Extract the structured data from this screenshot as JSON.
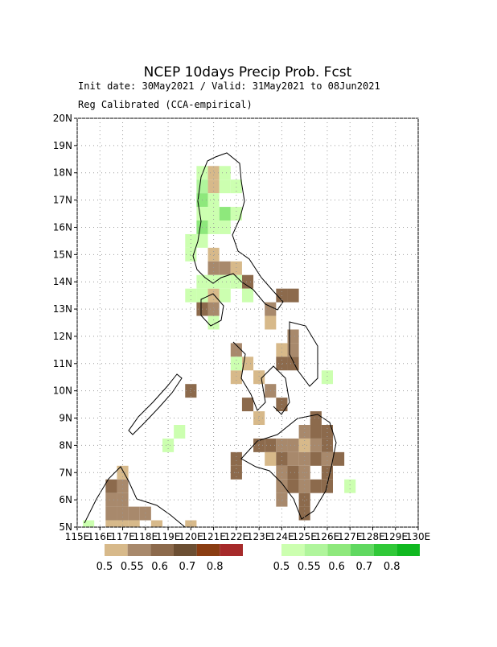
{
  "chart_data": {
    "type": "gridmap",
    "title": "NCEP 10days Precip Prob. Fcst",
    "subtitle": "Init date: 30May2021 / Valid: 31May2021 to 08Jun2021",
    "subtitle2": "Reg Calibrated (CCA-empirical)",
    "xlim": [
      115,
      130
    ],
    "ylim": [
      5,
      20
    ],
    "grid": true,
    "xticks": [
      {
        "value": 115,
        "label": "115E"
      },
      {
        "value": 116,
        "label": "116E"
      },
      {
        "value": 117,
        "label": "117E"
      },
      {
        "value": 118,
        "label": "118E"
      },
      {
        "value": 119,
        "label": "119E"
      },
      {
        "value": 120,
        "label": "120E"
      },
      {
        "value": 121,
        "label": "121E"
      },
      {
        "value": 122,
        "label": "122E"
      },
      {
        "value": 123,
        "label": "123E"
      },
      {
        "value": 124,
        "label": "124E"
      },
      {
        "value": 125,
        "label": "125E"
      },
      {
        "value": 126,
        "label": "126E"
      },
      {
        "value": 127,
        "label": "127E"
      },
      {
        "value": 128,
        "label": "128E"
      },
      {
        "value": 129,
        "label": "129E"
      },
      {
        "value": 130,
        "label": "130E"
      }
    ],
    "yticks": [
      {
        "value": 5,
        "label": "5N"
      },
      {
        "value": 6,
        "label": "6N"
      },
      {
        "value": 7,
        "label": "7N"
      },
      {
        "value": 8,
        "label": "8N"
      },
      {
        "value": 9,
        "label": "9N"
      },
      {
        "value": 10,
        "label": "10N"
      },
      {
        "value": 11,
        "label": "11N"
      },
      {
        "value": 12,
        "label": "12N"
      },
      {
        "value": 13,
        "label": "13N"
      },
      {
        "value": 14,
        "label": "14N"
      },
      {
        "value": 15,
        "label": "15N"
      },
      {
        "value": 16,
        "label": "16N"
      },
      {
        "value": 17,
        "label": "17N"
      },
      {
        "value": 18,
        "label": "18N"
      },
      {
        "value": 19,
        "label": "19N"
      },
      {
        "value": 20,
        "label": "20N"
      }
    ],
    "colorbars": [
      {
        "colors": [
          "#d7b98a",
          "#a8896c",
          "#8c6a4c",
          "#6c4f33",
          "#8a3d12",
          "#a62a2a"
        ],
        "labels": [
          0.5,
          0.55,
          0.6,
          0.7,
          0.8
        ]
      },
      {
        "colors": [
          "#ccffb0",
          "#b0f59c",
          "#8ee87c",
          "#60d860",
          "#30c838",
          "#10b820"
        ],
        "labels": [
          0.5,
          0.55,
          0.6,
          0.7,
          0.8
        ]
      }
    ],
    "series": [
      {
        "x": [
          121.0,
          121.0,
          121.0,
          121.0,
          121.5,
          122.0,
          122.5,
          121.0,
          120.5,
          121.0,
          124.0,
          124.5,
          123.5,
          123.5,
          124.5,
          124.0,
          124.5,
          122.0,
          122.5,
          124.0,
          124.5,
          122.0,
          123.0,
          123.5,
          120.0,
          122.5,
          124.0,
          123.0,
          125.5,
          125.0,
          125.5,
          126.0,
          123.0,
          123.5,
          124.0,
          124.5,
          125.0,
          125.5,
          126.0,
          122.0,
          123.5,
          124.0,
          124.5,
          125.0,
          125.5,
          126.0,
          126.5,
          122.0,
          124.0,
          124.5,
          125.0,
          126.0,
          124.0,
          124.5,
          125.0,
          125.5,
          126.0,
          124.0,
          125.0,
          125.0,
          117.0,
          117.0,
          116.5,
          116.5,
          117.0,
          116.5,
          117.0,
          117.5,
          118.0,
          116.5,
          117.0,
          117.5,
          118.5,
          120.0
        ],
        "y": [
          18.0,
          17.5,
          15.0,
          14.5,
          14.5,
          14.5,
          14.0,
          13.5,
          13.0,
          13.0,
          13.5,
          13.5,
          13.0,
          12.5,
          12.0,
          11.5,
          11.5,
          11.5,
          11.0,
          11.0,
          11.0,
          10.5,
          10.5,
          10.0,
          10.0,
          9.5,
          9.5,
          9.0,
          9.0,
          8.5,
          8.5,
          8.5,
          8.0,
          8.0,
          8.0,
          8.0,
          8.0,
          8.0,
          8.0,
          7.5,
          7.5,
          7.5,
          7.5,
          7.5,
          7.5,
          7.5,
          7.5,
          7.0,
          7.0,
          7.0,
          7.0,
          7.0,
          6.5,
          6.5,
          6.5,
          6.5,
          6.5,
          6.0,
          6.0,
          5.5,
          7.0,
          6.5,
          6.5,
          6.0,
          6.0,
          5.5,
          5.5,
          5.5,
          5.5,
          5.0,
          5.0,
          5.0,
          5.0,
          5.0
        ],
        "values": [
          0.5,
          0.5,
          0.5,
          0.55,
          0.55,
          0.5,
          0.6,
          0.5,
          0.6,
          0.55,
          0.6,
          0.6,
          0.55,
          0.5,
          0.55,
          0.5,
          0.55,
          0.55,
          0.5,
          0.6,
          0.6,
          0.5,
          0.5,
          0.55,
          0.6,
          0.6,
          0.6,
          0.5,
          0.6,
          0.55,
          0.6,
          0.6,
          0.6,
          0.6,
          0.55,
          0.55,
          0.5,
          0.55,
          0.6,
          0.6,
          0.5,
          0.6,
          0.55,
          0.55,
          0.6,
          0.55,
          0.6,
          0.6,
          0.55,
          0.6,
          0.55,
          0.6,
          0.55,
          0.6,
          0.55,
          0.6,
          0.6,
          0.55,
          0.6,
          0.6,
          0.5,
          0.55,
          0.6,
          0.55,
          0.55,
          0.55,
          0.55,
          0.55,
          0.55,
          0.5,
          0.5,
          0.5,
          0.5,
          0.5
        ]
      },
      {
        "x": [
          120.5,
          121.5,
          120.5,
          121.5,
          122.0,
          120.5,
          121.0,
          121.5,
          122.0,
          120.5,
          121.0,
          121.5,
          120.5,
          121.0,
          120.0,
          120.5,
          120.0,
          121.5,
          121.0,
          122.0,
          120.5,
          120.0,
          120.5,
          121.5,
          122.5,
          121.0,
          119.5,
          119.0,
          122.0,
          126.0,
          115.5,
          127.0
        ],
        "y": [
          18.0,
          18.0,
          17.5,
          17.5,
          17.5,
          17.0,
          17.0,
          16.5,
          16.5,
          16.5,
          16.5,
          16.0,
          16.0,
          16.0,
          15.5,
          15.5,
          15.0,
          14.0,
          14.0,
          14.0,
          14.0,
          13.5,
          13.5,
          13.5,
          13.5,
          12.5,
          8.5,
          8.0,
          11.0,
          10.5,
          5.0,
          6.5
        ],
        "values": [
          0.5,
          0.5,
          0.55,
          0.5,
          0.5,
          0.6,
          0.5,
          0.6,
          0.5,
          0.5,
          0.5,
          0.5,
          0.6,
          0.5,
          0.5,
          0.5,
          0.5,
          0.5,
          0.5,
          0.5,
          0.5,
          0.5,
          0.5,
          0.5,
          0.5,
          0.5,
          0.5,
          0.5,
          0.5,
          0.5,
          0.5,
          0.5
        ]
      }
    ]
  }
}
